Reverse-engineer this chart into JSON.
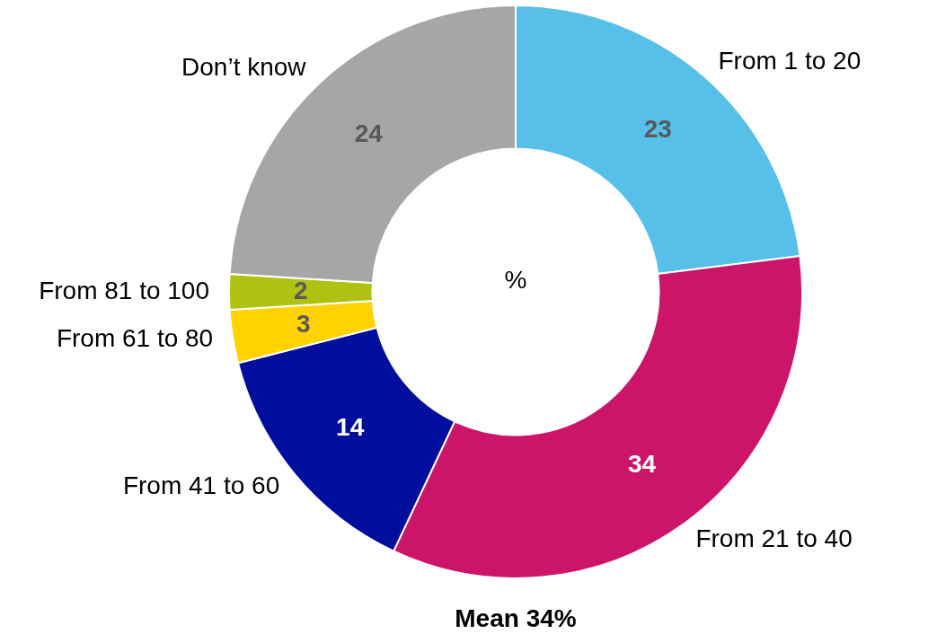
{
  "chart_data": {
    "type": "donut",
    "categories": [
      "From 1 to 20",
      "From 21 to 40",
      "From 41 to 60",
      "From 61 to 80",
      "From 81 to 100",
      "Don’t know"
    ],
    "values": [
      23,
      34,
      14,
      3,
      2,
      24
    ],
    "colors": [
      "#56c0e8",
      "#cc1469",
      "#000e9e",
      "#ffd200",
      "#afc212",
      "#a6a6a6"
    ],
    "data_labels": true,
    "legend": false,
    "annotations": [
      "%",
      "Mean 34%"
    ]
  }
}
